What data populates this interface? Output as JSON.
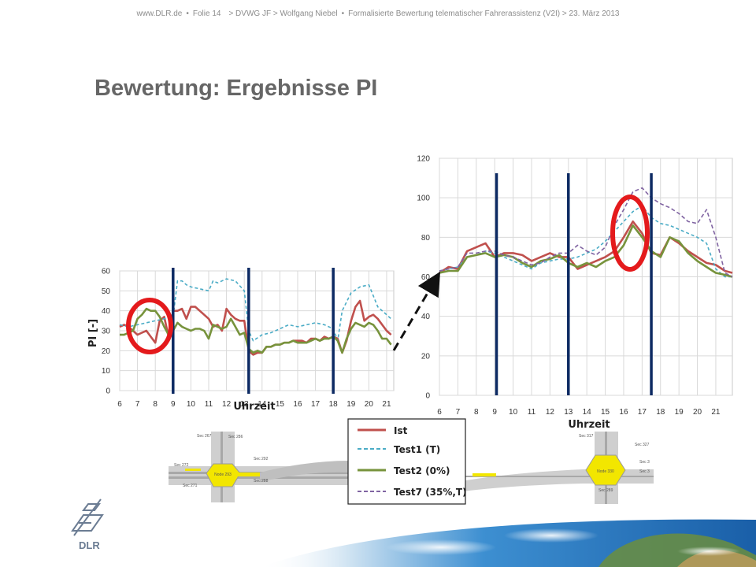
{
  "header": {
    "site": "www.DLR.de",
    "slide": "Folie 14",
    "path": "> DVWG JF > Wolfgang Niebel",
    "topic": "Formalisierte Bewertung telematischer Fahrerassistenz (V2I) > 23. März 2013"
  },
  "title": "Bewertung: Ergebnisse PI",
  "logo": {
    "text": "DLR",
    "icon": "dlr-logo-icon"
  },
  "colors": {
    "ist": "#c0504d",
    "test1": "#4bacc6",
    "test2": "#77933c",
    "test7": "#8064a2",
    "marker": "#0d2a63",
    "highlight": "#e41a1c"
  },
  "legend": [
    {
      "label": "Ist",
      "style": "solid",
      "color": "#c0504d"
    },
    {
      "label": "Test1 (T)",
      "style": "dashed",
      "color": "#4bacc6"
    },
    {
      "label": "Test2 (0%)",
      "style": "solid",
      "color": "#77933c"
    },
    {
      "label": "Test7 (35%,T)",
      "style": "dashed",
      "color": "#8064a2"
    }
  ],
  "map": {
    "labels_left": [
      "Sec 267",
      "Sec 286",
      "Sec 272",
      "Sec 292",
      "Node 293",
      "Sec 271",
      "Sec 288"
    ],
    "labels_right": [
      "Sec 317",
      "Sec 327",
      "Sec 3",
      "Node 330",
      "Sec 289",
      "Sec 3"
    ]
  },
  "chart_data": [
    {
      "type": "line",
      "ylabel": "PI [-]",
      "xlabel": "Uhrzeit",
      "ylim": [
        0,
        60
      ],
      "yticks": [
        0,
        10,
        20,
        30,
        40,
        50,
        60
      ],
      "xticks": [
        6,
        7,
        8,
        9,
        10,
        11,
        12,
        13,
        14,
        15,
        16,
        17,
        18,
        19,
        20,
        21
      ],
      "xlim": [
        6,
        21.4
      ],
      "markers_x": [
        9,
        13.25,
        18
      ],
      "grid": true,
      "series": [
        {
          "name": "Ist",
          "x": [
            6,
            6.25,
            6.5,
            6.75,
            7,
            7.25,
            7.5,
            7.75,
            8,
            8.25,
            8.5,
            8.75,
            9,
            9.25,
            9.5,
            9.75,
            10,
            10.25,
            10.5,
            10.75,
            11,
            11.25,
            11.5,
            11.75,
            12,
            12.25,
            12.5,
            12.75,
            13,
            13.25,
            13.5,
            13.75,
            14,
            14.25,
            14.5,
            14.75,
            15,
            15.25,
            15.5,
            15.75,
            16,
            16.25,
            16.5,
            16.75,
            17,
            17.25,
            17.5,
            17.75,
            18,
            18.25,
            18.5,
            18.75,
            19,
            19.25,
            19.5,
            19.75,
            20,
            20.25,
            20.5,
            20.75,
            21,
            21.25
          ],
          "y": [
            32,
            33,
            32,
            30,
            28,
            29,
            30,
            27,
            24,
            35,
            37,
            27,
            40,
            40,
            41,
            36,
            42,
            42,
            40,
            38,
            36,
            32,
            33,
            30,
            41,
            38,
            36,
            35,
            35,
            20,
            18,
            19,
            19,
            22,
            22,
            23,
            23,
            24,
            24,
            25,
            25,
            25,
            24,
            26,
            26,
            25,
            27,
            26,
            27,
            26,
            19,
            25,
            35,
            42,
            45,
            35,
            37,
            38,
            36,
            33,
            30,
            28
          ]
        },
        {
          "name": "Test1 (T)",
          "x": [
            6,
            6.5,
            7,
            7.5,
            8,
            8.5,
            9,
            9.25,
            9.5,
            9.75,
            10,
            10.5,
            11,
            11.25,
            11.5,
            11.75,
            12,
            12.5,
            13,
            13.25,
            13.5,
            14,
            14.5,
            15,
            15.5,
            16,
            16.5,
            17,
            17.5,
            18,
            18.25,
            18.5,
            19,
            19.5,
            20,
            20.5,
            21,
            21.25
          ],
          "y": [
            33,
            32,
            33,
            34,
            35,
            36,
            37,
            55,
            55,
            53,
            52,
            51,
            50,
            55,
            54,
            55,
            56,
            55,
            50,
            30,
            25,
            28,
            29,
            31,
            33,
            32,
            33,
            34,
            33,
            31,
            25,
            40,
            49,
            52,
            53,
            42,
            38,
            36
          ]
        },
        {
          "name": "Test2 (0%)",
          "x": [
            6,
            6.25,
            6.5,
            6.75,
            7,
            7.25,
            7.5,
            7.75,
            8,
            8.25,
            8.5,
            8.75,
            9,
            9.25,
            9.5,
            9.75,
            10,
            10.25,
            10.5,
            10.75,
            11,
            11.25,
            11.5,
            11.75,
            12,
            12.25,
            12.5,
            12.75,
            13,
            13.25,
            13.5,
            13.75,
            14,
            14.25,
            14.5,
            14.75,
            15,
            15.25,
            15.5,
            15.75,
            16,
            16.25,
            16.5,
            16.75,
            17,
            17.25,
            17.5,
            17.75,
            18,
            18.25,
            18.5,
            18.75,
            19,
            19.25,
            19.5,
            19.75,
            20,
            20.25,
            20.5,
            20.75,
            21,
            21.25
          ],
          "y": [
            28,
            28,
            29,
            30,
            36,
            38,
            41,
            40,
            40,
            37,
            32,
            28,
            30,
            34,
            32,
            31,
            30,
            31,
            31,
            30,
            26,
            33,
            32,
            31,
            32,
            36,
            32,
            28,
            29,
            21,
            19,
            20,
            19,
            22,
            22,
            23,
            23,
            24,
            24,
            25,
            24,
            24,
            24,
            25,
            26,
            25,
            26,
            26,
            27,
            25,
            19,
            26,
            31,
            34,
            33,
            32,
            34,
            33,
            30,
            26,
            26,
            23
          ]
        },
        {
          "name": "Test7 (35%,T)",
          "x": [],
          "y": []
        }
      ]
    },
    {
      "type": "line",
      "ylabel": "",
      "xlabel": "Uhrzeit",
      "ylim": [
        0,
        120
      ],
      "yticks": [
        0,
        20,
        40,
        60,
        80,
        100,
        120
      ],
      "xticks": [
        6,
        7,
        8,
        9,
        10,
        11,
        12,
        13,
        14,
        15,
        16,
        17,
        18,
        19,
        20,
        21
      ],
      "xlim": [
        6,
        21.9
      ],
      "markers_x": [
        9.1,
        13,
        17.5
      ],
      "grid": true,
      "series": [
        {
          "name": "Ist",
          "x": [
            6,
            6.5,
            7,
            7.5,
            8,
            8.5,
            9,
            9.5,
            10,
            10.5,
            11,
            11.5,
            12,
            12.5,
            13,
            13.5,
            14,
            14.5,
            15,
            15.5,
            16,
            16.5,
            17,
            17.5,
            18,
            18.5,
            19,
            19.5,
            20,
            20.5,
            21,
            21.5,
            21.9
          ],
          "y": [
            62,
            65,
            64,
            73,
            75,
            77,
            70,
            72,
            72,
            71,
            68,
            70,
            72,
            70,
            70,
            64,
            66,
            68,
            70,
            73,
            80,
            88,
            82,
            72,
            71,
            80,
            77,
            73,
            70,
            67,
            66,
            63,
            62
          ]
        },
        {
          "name": "Test1 (T)",
          "x": [
            6,
            6.5,
            7,
            7.5,
            8,
            8.5,
            9,
            9.5,
            10,
            10.5,
            11,
            11.5,
            12,
            12.5,
            13,
            13.5,
            14,
            14.5,
            15,
            15.5,
            16,
            16.5,
            17,
            17.5,
            18,
            18.5,
            19,
            19.5,
            20,
            20.5,
            21,
            21.5,
            21.9
          ],
          "y": [
            63,
            64,
            65,
            70,
            71,
            73,
            72,
            70,
            68,
            66,
            64,
            67,
            68,
            69,
            69,
            70,
            72,
            74,
            78,
            83,
            88,
            93,
            96,
            90,
            87,
            86,
            84,
            82,
            80,
            77,
            64,
            60,
            60
          ]
        },
        {
          "name": "Test2 (0%)",
          "x": [
            6,
            6.5,
            7,
            7.5,
            8,
            8.5,
            9,
            9.5,
            10,
            10.5,
            11,
            11.5,
            12,
            12.5,
            13,
            13.5,
            14,
            14.5,
            15,
            15.5,
            16,
            16.5,
            17,
            17.5,
            18,
            18.5,
            19,
            19.5,
            20,
            20.5,
            21,
            21.5,
            21.9
          ],
          "y": [
            62,
            63,
            63,
            70,
            71,
            72,
            70,
            71,
            70,
            67,
            65,
            68,
            69,
            71,
            67,
            65,
            67,
            65,
            68,
            70,
            76,
            86,
            80,
            73,
            70,
            80,
            78,
            72,
            68,
            65,
            62,
            61,
            60
          ]
        },
        {
          "name": "Test7 (35%,T)",
          "x": [
            6,
            6.5,
            7,
            7.5,
            8,
            8.5,
            9,
            9.5,
            10,
            10.5,
            11,
            11.5,
            12,
            12.5,
            13,
            13.5,
            14,
            14.5,
            15,
            15.5,
            16,
            16.5,
            17,
            17.5,
            18,
            18.5,
            19,
            19.5,
            20,
            20.5,
            21,
            21.5,
            21.9
          ],
          "y": [
            63,
            64,
            65,
            72,
            72,
            73,
            73,
            71,
            70,
            68,
            66,
            67,
            70,
            72,
            72,
            76,
            73,
            71,
            75,
            86,
            94,
            103,
            105,
            100,
            97,
            95,
            92,
            88,
            87,
            94,
            80,
            62,
            60
          ]
        }
      ]
    }
  ]
}
